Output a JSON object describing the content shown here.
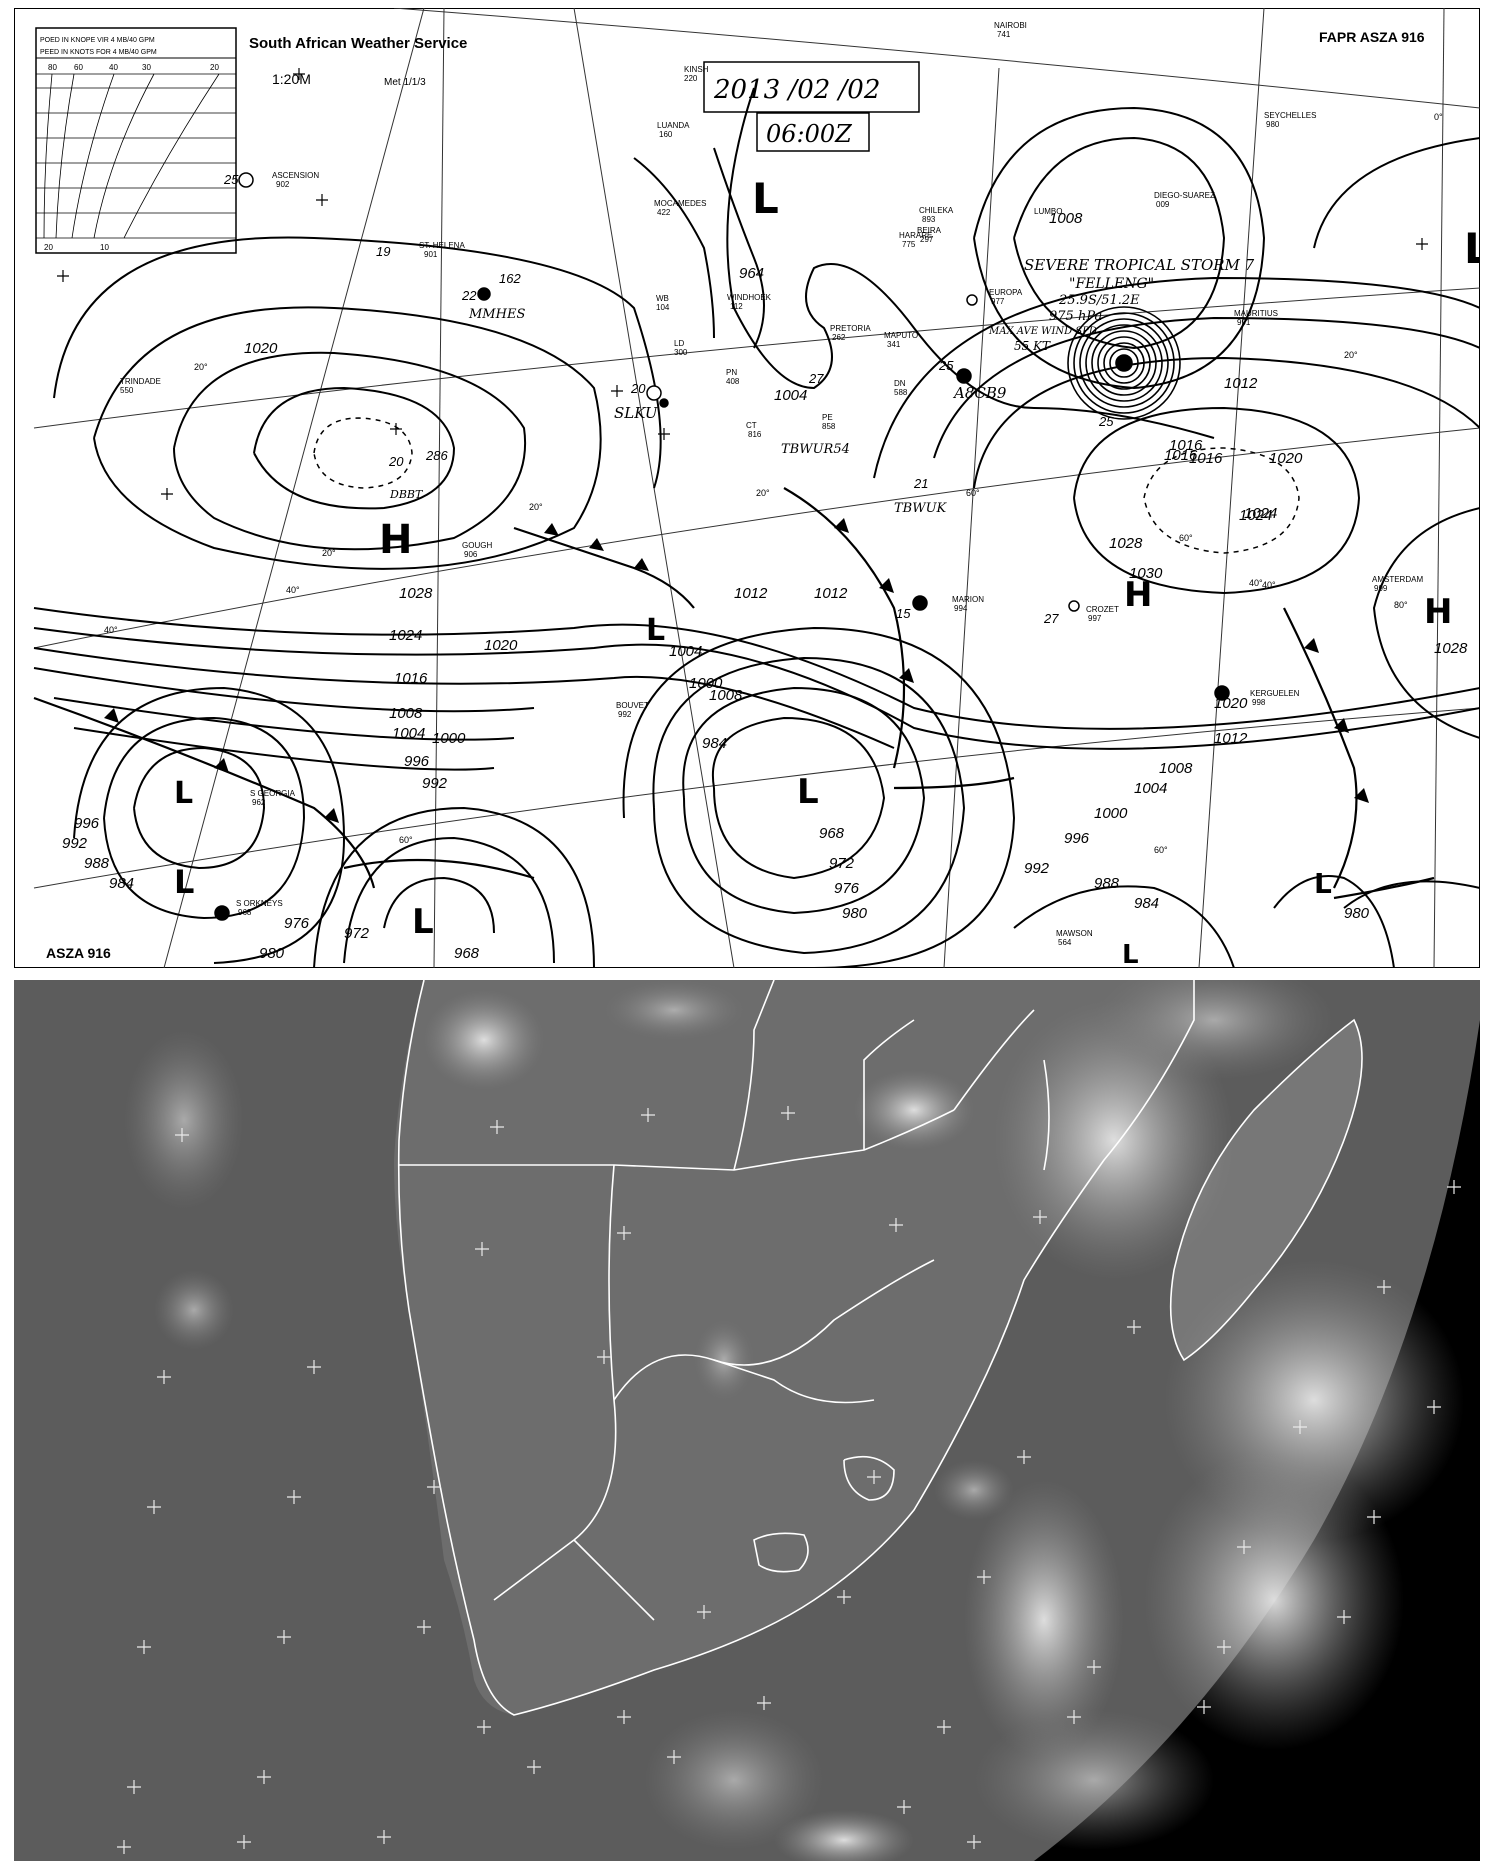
{
  "chart": {
    "agency": "South African Weather Service",
    "code_header": "FAPR ASZA 916",
    "code_footer": "ASZA 916",
    "scale": "1:20M",
    "met_ref": "Met 1/1/3",
    "date": "2013 /02 /02",
    "time": "06:00Z",
    "scale_box": {
      "line1": "POED IN KNOPE VIR 4 MB/40 GPM",
      "line2": "PEED IN KNOTS FOR 4 MB/40 GPM",
      "top_ticks": [
        "80",
        "60",
        "40",
        "30",
        "20"
      ],
      "bottom_ticks": [
        "20",
        "10"
      ]
    },
    "storm": {
      "line1": "SEVERE TROPICAL STORM 7",
      "line2": "\"FELLENG\"",
      "line3": "25.9S/51.2E",
      "line4": "975 hPa",
      "line5": "MAX AVE WIND SPD",
      "line6": "55 KT"
    },
    "stations": [
      {
        "name": "NAIROBI",
        "value": "741"
      },
      {
        "name": "KINSH",
        "value": "220"
      },
      {
        "name": "SEYCHELLES",
        "value": "980"
      },
      {
        "name": "ASCENSION",
        "value": "902"
      },
      {
        "name": "LUANDA",
        "value": "160"
      },
      {
        "name": "MOCAMEDES",
        "value": "422"
      },
      {
        "name": "CHILEKA",
        "value": "893"
      },
      {
        "name": "LUMBO",
        "value": ""
      },
      {
        "name": "DIEGO-SUAREZ",
        "value": "009"
      },
      {
        "name": "HARARE",
        "value": "775"
      },
      {
        "name": "ST. HELENA",
        "value": "901"
      },
      {
        "name": "BEIRA",
        "value": "297"
      },
      {
        "name": "WB",
        "value": "104"
      },
      {
        "name": "WINDHOEK",
        "value": "112"
      },
      {
        "name": "EUROPA",
        "value": "977"
      },
      {
        "name": "MAURITIUS",
        "value": "991"
      },
      {
        "name": "PRETORIA",
        "value": "262"
      },
      {
        "name": "MAPUTO",
        "value": "341"
      },
      {
        "name": "LD",
        "value": "300"
      },
      {
        "name": "TRINDADE",
        "value": "550"
      },
      {
        "name": "PN",
        "value": "408"
      },
      {
        "name": "DN",
        "value": "588"
      },
      {
        "name": "CT",
        "value": "816"
      },
      {
        "name": "PE",
        "value": "858"
      },
      {
        "name": "GOUGH",
        "value": "906"
      },
      {
        "name": "MARION",
        "value": "994"
      },
      {
        "name": "CROZET",
        "value": "997"
      },
      {
        "name": "AMSTERDAM",
        "value": "999"
      },
      {
        "name": "BOUVET",
        "value": "992"
      },
      {
        "name": "KERGUELEN",
        "value": "998"
      },
      {
        "name": "S GEORGIA",
        "value": "962"
      },
      {
        "name": "S ORKNEYS",
        "value": "968"
      },
      {
        "name": "MAWSON",
        "value": "564"
      }
    ],
    "call_signs": [
      "MMHES",
      "SLKU",
      "TBWUR54",
      "A8CB9",
      "DBBT",
      "TBWUK"
    ],
    "systems": [
      "L",
      "L",
      "H",
      "L",
      "L",
      "H",
      "H",
      "L",
      "L",
      "L",
      "L",
      "L"
    ],
    "isobars": [
      "1020",
      "1020",
      "1016",
      "1024",
      "1028",
      "1024",
      "1020",
      "1016",
      "1012",
      "1008",
      "1004",
      "1000",
      "996",
      "992",
      "988",
      "984",
      "980",
      "976",
      "972",
      "968",
      "964",
      "1004",
      "1008",
      "1012",
      "1016",
      "1012",
      "1004",
      "1000",
      "996",
      "992",
      "988",
      "984",
      "980",
      "976",
      "972",
      "968",
      "980",
      "984",
      "988",
      "992",
      "996",
      "1000",
      "1004",
      "1008",
      "1012",
      "1016",
      "1020",
      "1024",
      "1028",
      "1030",
      "1028",
      "1008",
      "1004",
      "1000",
      "1012"
    ],
    "obs_numbers": [
      "25",
      "19",
      "22",
      "162",
      "20",
      "27",
      "25",
      "21",
      "20",
      "286",
      "15",
      "27",
      "25"
    ],
    "graticule": [
      "20°",
      "40°",
      "60°",
      "20°",
      "40°",
      "60°",
      "20°",
      "40°",
      "60°",
      "0°",
      "20°",
      "40°",
      "60°",
      "20°",
      "80°"
    ]
  },
  "satellite": {
    "description_hidden": "",
    "colors": {
      "ocean": "#5a5a5a",
      "land": "#6e6e6e",
      "cloud": "#d0d0d0",
      "space": "#000000",
      "border": "#ffffff"
    }
  }
}
